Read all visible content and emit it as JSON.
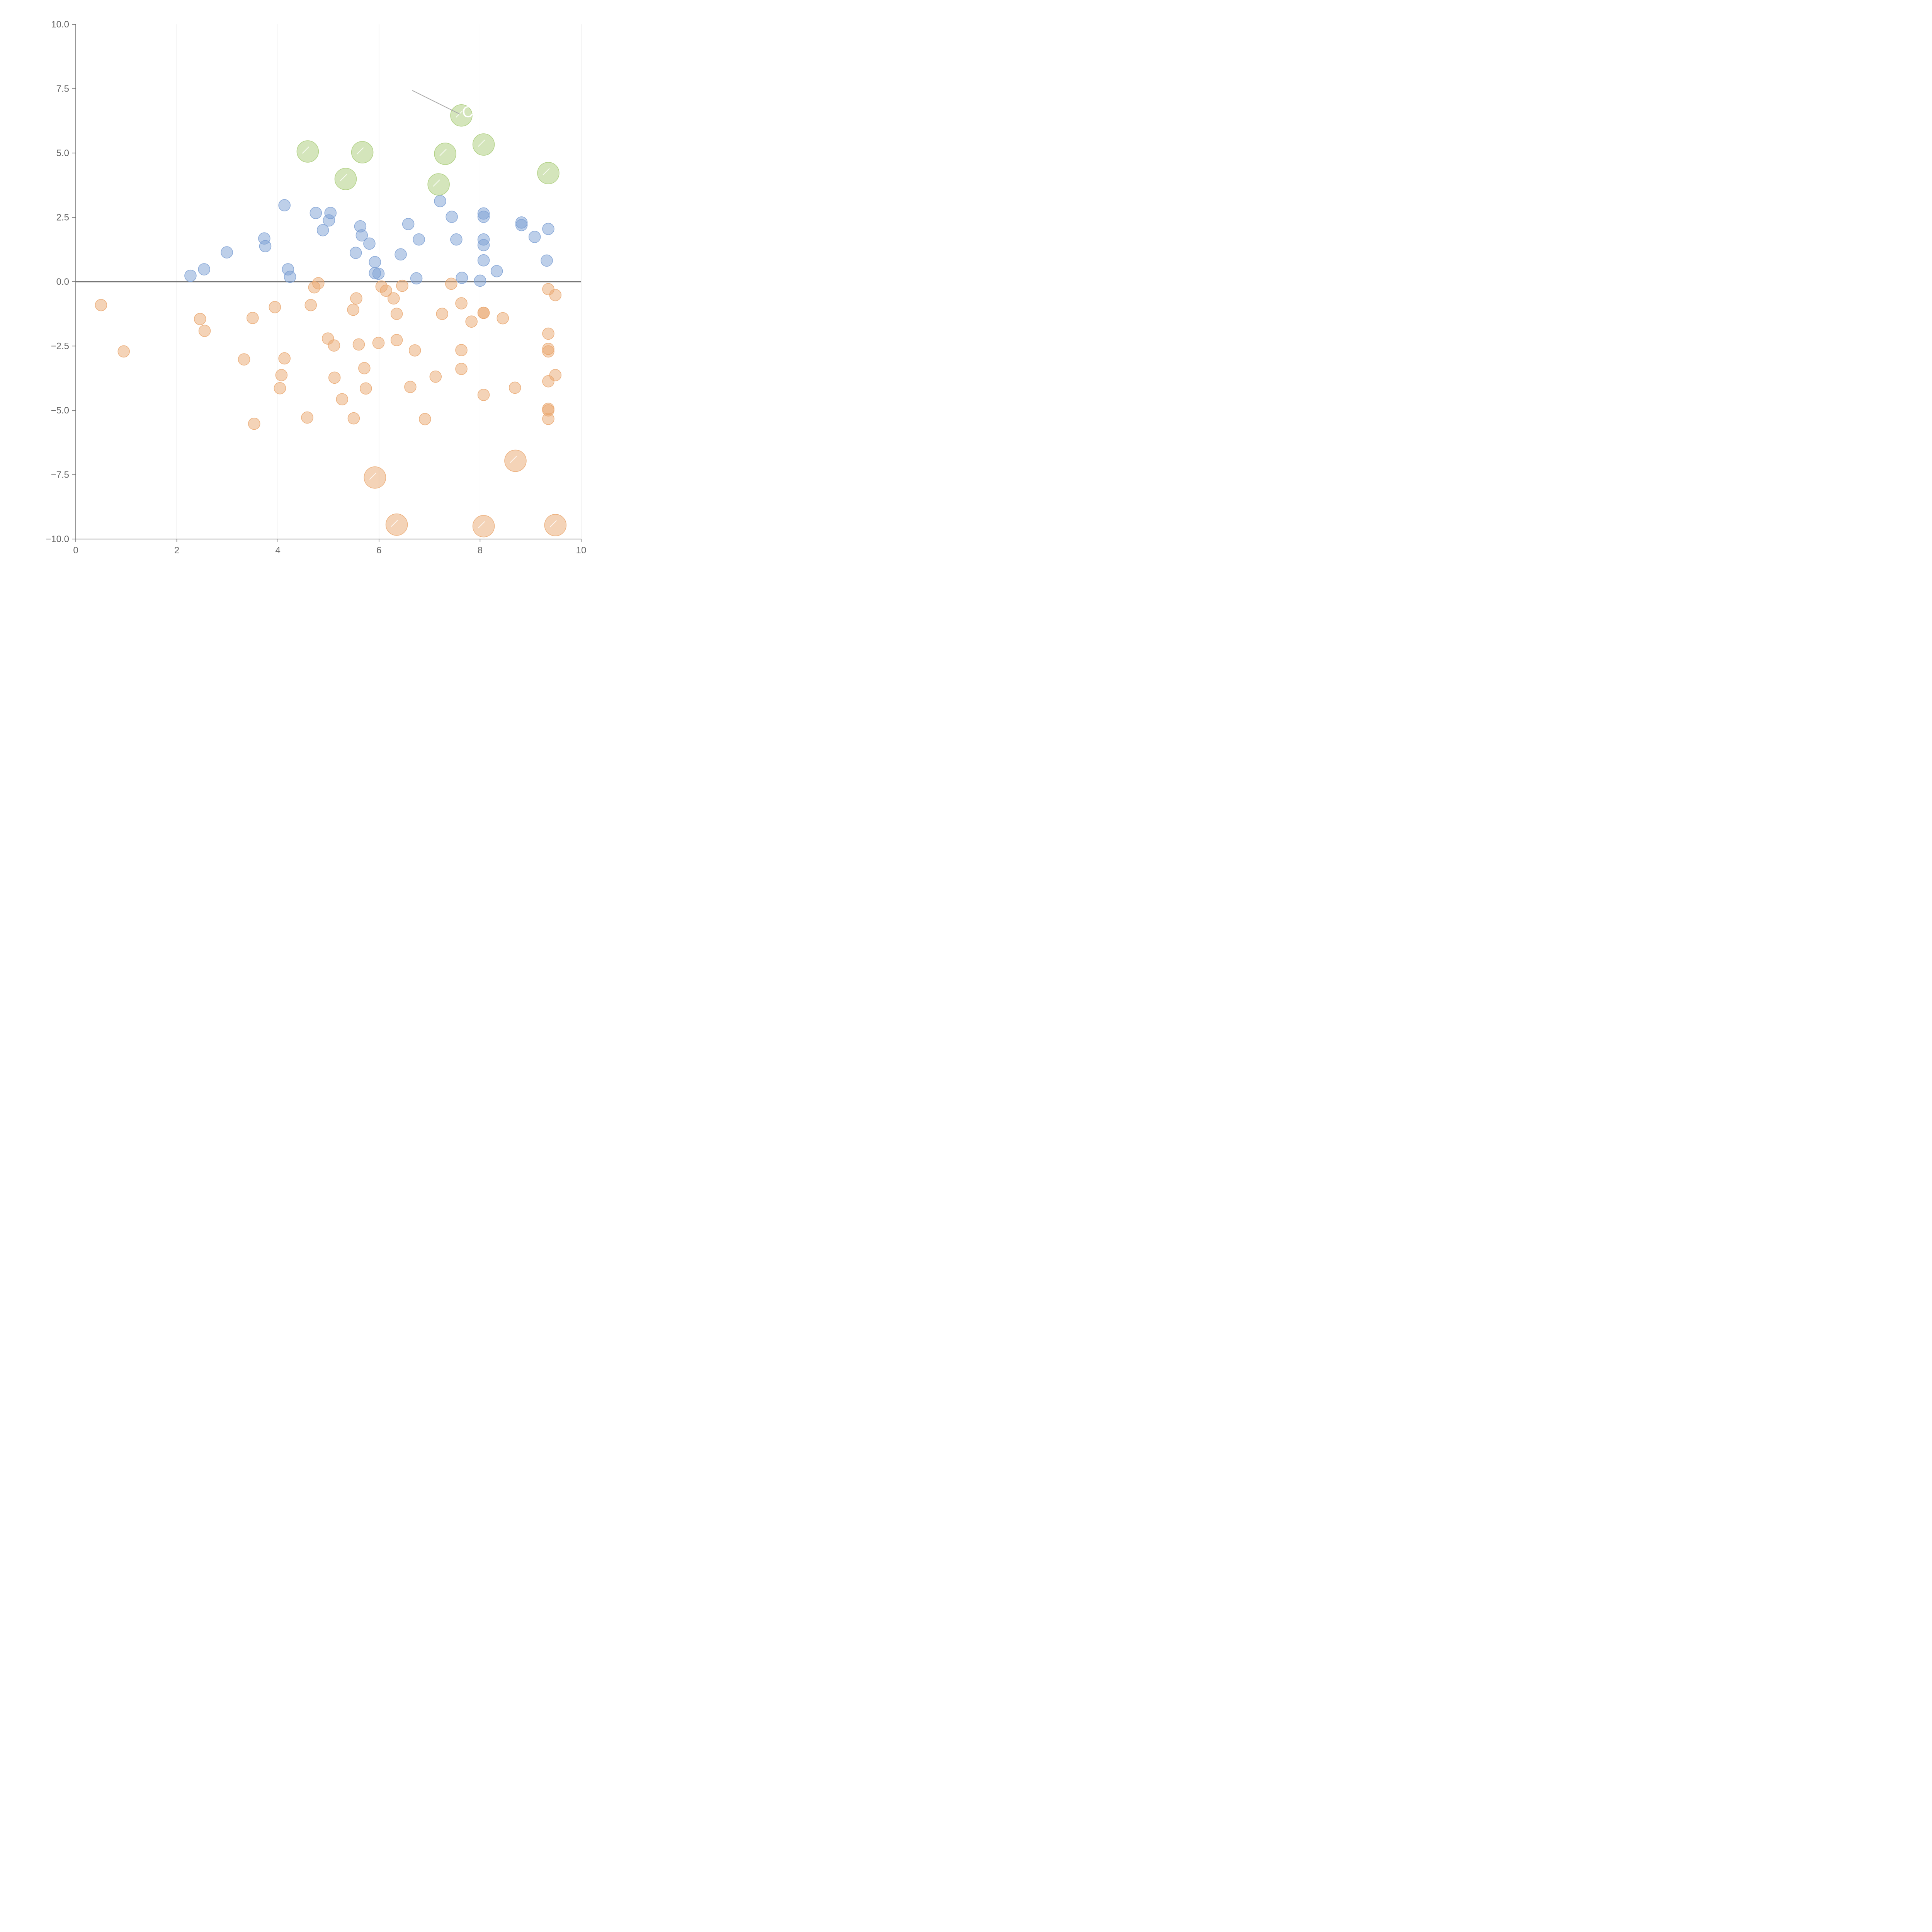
{
  "chart_data": {
    "type": "scatter",
    "title": "",
    "xlabel": "",
    "ylabel": "",
    "xlim": [
      0,
      10
    ],
    "ylim": [
      -10,
      10
    ],
    "x_ticks": [
      0,
      2,
      4,
      6,
      8,
      10
    ],
    "x_tick_labels": [
      "0",
      "2",
      "4",
      "6",
      "8",
      "10"
    ],
    "y_ticks": [
      -10,
      -7.5,
      -5,
      -2.5,
      0,
      2.5,
      5,
      7.5,
      10
    ],
    "y_tick_labels": [
      "−10.0",
      "−7.5",
      "−5.0",
      "−2.5",
      "0.0",
      "2.5",
      "5.0",
      "7.5",
      "10.0"
    ],
    "grid": "vertical",
    "reference_line_y": 0,
    "colors": {
      "positive": "#7b9fd3",
      "negative": "#eaa76f",
      "highlight": "#a9cc78",
      "axis": "#666666",
      "grid": "#dddddd",
      "tick_text": "#666666",
      "zero_line": "#777777"
    },
    "series": [
      {
        "name": "positive",
        "color": "#7b9fd3",
        "marker": "small",
        "points": [
          [
            2.27,
            0.23
          ],
          [
            2.54,
            0.48
          ],
          [
            2.99,
            1.14
          ],
          [
            3.73,
            1.68
          ],
          [
            3.75,
            1.38
          ],
          [
            4.13,
            2.97
          ],
          [
            4.2,
            0.48
          ],
          [
            4.24,
            0.19
          ],
          [
            4.75,
            2.67
          ],
          [
            4.89,
            2.0
          ],
          [
            5.01,
            2.38
          ],
          [
            5.04,
            2.67
          ],
          [
            5.54,
            1.12
          ],
          [
            5.63,
            2.15
          ],
          [
            5.66,
            1.8
          ],
          [
            5.81,
            1.48
          ],
          [
            5.92,
            0.76
          ],
          [
            5.92,
            0.33
          ],
          [
            5.99,
            0.31
          ],
          [
            6.43,
            1.06
          ],
          [
            6.58,
            2.24
          ],
          [
            6.74,
            0.13
          ],
          [
            6.79,
            1.64
          ],
          [
            7.21,
            3.13
          ],
          [
            7.44,
            2.52
          ],
          [
            7.53,
            1.64
          ],
          [
            7.64,
            0.15
          ],
          [
            8.0,
            0.04
          ],
          [
            8.07,
            2.65
          ],
          [
            8.07,
            2.52
          ],
          [
            8.07,
            1.64
          ],
          [
            8.07,
            1.42
          ],
          [
            8.07,
            0.83
          ],
          [
            8.33,
            0.41
          ],
          [
            8.82,
            2.3
          ],
          [
            8.82,
            2.2
          ],
          [
            9.08,
            1.74
          ],
          [
            9.32,
            0.82
          ],
          [
            9.35,
            2.05
          ]
        ]
      },
      {
        "name": "negative",
        "color": "#eaa76f",
        "marker": "small",
        "points": [
          [
            0.5,
            -0.91
          ],
          [
            0.95,
            -2.71
          ],
          [
            2.46,
            -1.45
          ],
          [
            2.55,
            -1.91
          ],
          [
            3.33,
            -3.02
          ],
          [
            3.5,
            -1.41
          ],
          [
            3.53,
            -5.52
          ],
          [
            3.94,
            -0.99
          ],
          [
            4.04,
            -4.14
          ],
          [
            4.07,
            -3.63
          ],
          [
            4.13,
            -2.98
          ],
          [
            4.58,
            -5.28
          ],
          [
            4.65,
            -0.91
          ],
          [
            4.72,
            -0.22
          ],
          [
            4.8,
            -0.06
          ],
          [
            4.99,
            -2.21
          ],
          [
            5.11,
            -2.48
          ],
          [
            5.12,
            -3.73
          ],
          [
            5.27,
            -4.57
          ],
          [
            5.49,
            -1.09
          ],
          [
            5.5,
            -5.31
          ],
          [
            5.55,
            -0.65
          ],
          [
            5.6,
            -2.44
          ],
          [
            5.71,
            -3.36
          ],
          [
            5.74,
            -4.15
          ],
          [
            5.99,
            -2.38
          ],
          [
            6.05,
            -0.19
          ],
          [
            6.14,
            -0.35
          ],
          [
            6.29,
            -0.65
          ],
          [
            6.35,
            -1.25
          ],
          [
            6.35,
            -2.27
          ],
          [
            6.46,
            -0.16
          ],
          [
            6.62,
            -4.09
          ],
          [
            6.71,
            -2.67
          ],
          [
            6.91,
            -5.34
          ],
          [
            7.12,
            -3.69
          ],
          [
            7.25,
            -1.25
          ],
          [
            7.43,
            -0.08
          ],
          [
            7.63,
            -0.84
          ],
          [
            7.63,
            -2.66
          ],
          [
            7.63,
            -3.39
          ],
          [
            7.83,
            -1.55
          ],
          [
            8.07,
            -1.21
          ],
          [
            8.07,
            -1.21
          ],
          [
            8.07,
            -4.4
          ],
          [
            8.45,
            -1.42
          ],
          [
            8.69,
            -4.12
          ],
          [
            9.35,
            -0.29
          ],
          [
            9.35,
            -2.02
          ],
          [
            9.35,
            -2.61
          ],
          [
            9.35,
            -2.71
          ],
          [
            9.35,
            -3.87
          ],
          [
            9.35,
            -4.94
          ],
          [
            9.35,
            -5.0
          ],
          [
            9.35,
            -5.33
          ],
          [
            9.49,
            -0.52
          ],
          [
            9.49,
            -3.63
          ]
        ]
      },
      {
        "name": "highlight-positive",
        "color": "#a9cc78",
        "marker": "large",
        "points": [
          [
            4.59,
            5.06
          ],
          [
            5.34,
            3.99
          ],
          [
            5.67,
            5.03
          ],
          [
            7.18,
            3.78
          ],
          [
            7.31,
            4.97
          ],
          [
            7.63,
            6.46
          ],
          [
            8.07,
            5.33
          ],
          [
            9.35,
            4.22
          ]
        ]
      },
      {
        "name": "highlight-negative",
        "color": "#eaa76f",
        "marker": "large",
        "points": [
          [
            5.92,
            -7.61
          ],
          [
            6.35,
            -9.44
          ],
          [
            8.07,
            -9.5
          ],
          [
            8.7,
            -6.96
          ],
          [
            9.49,
            -9.46
          ]
        ]
      }
    ],
    "annotation": {
      "text": "C",
      "x": 7.63,
      "y": 6.46,
      "leader_start": [
        6.66,
        7.43
      ],
      "leader_end": [
        7.63,
        6.46
      ]
    }
  }
}
